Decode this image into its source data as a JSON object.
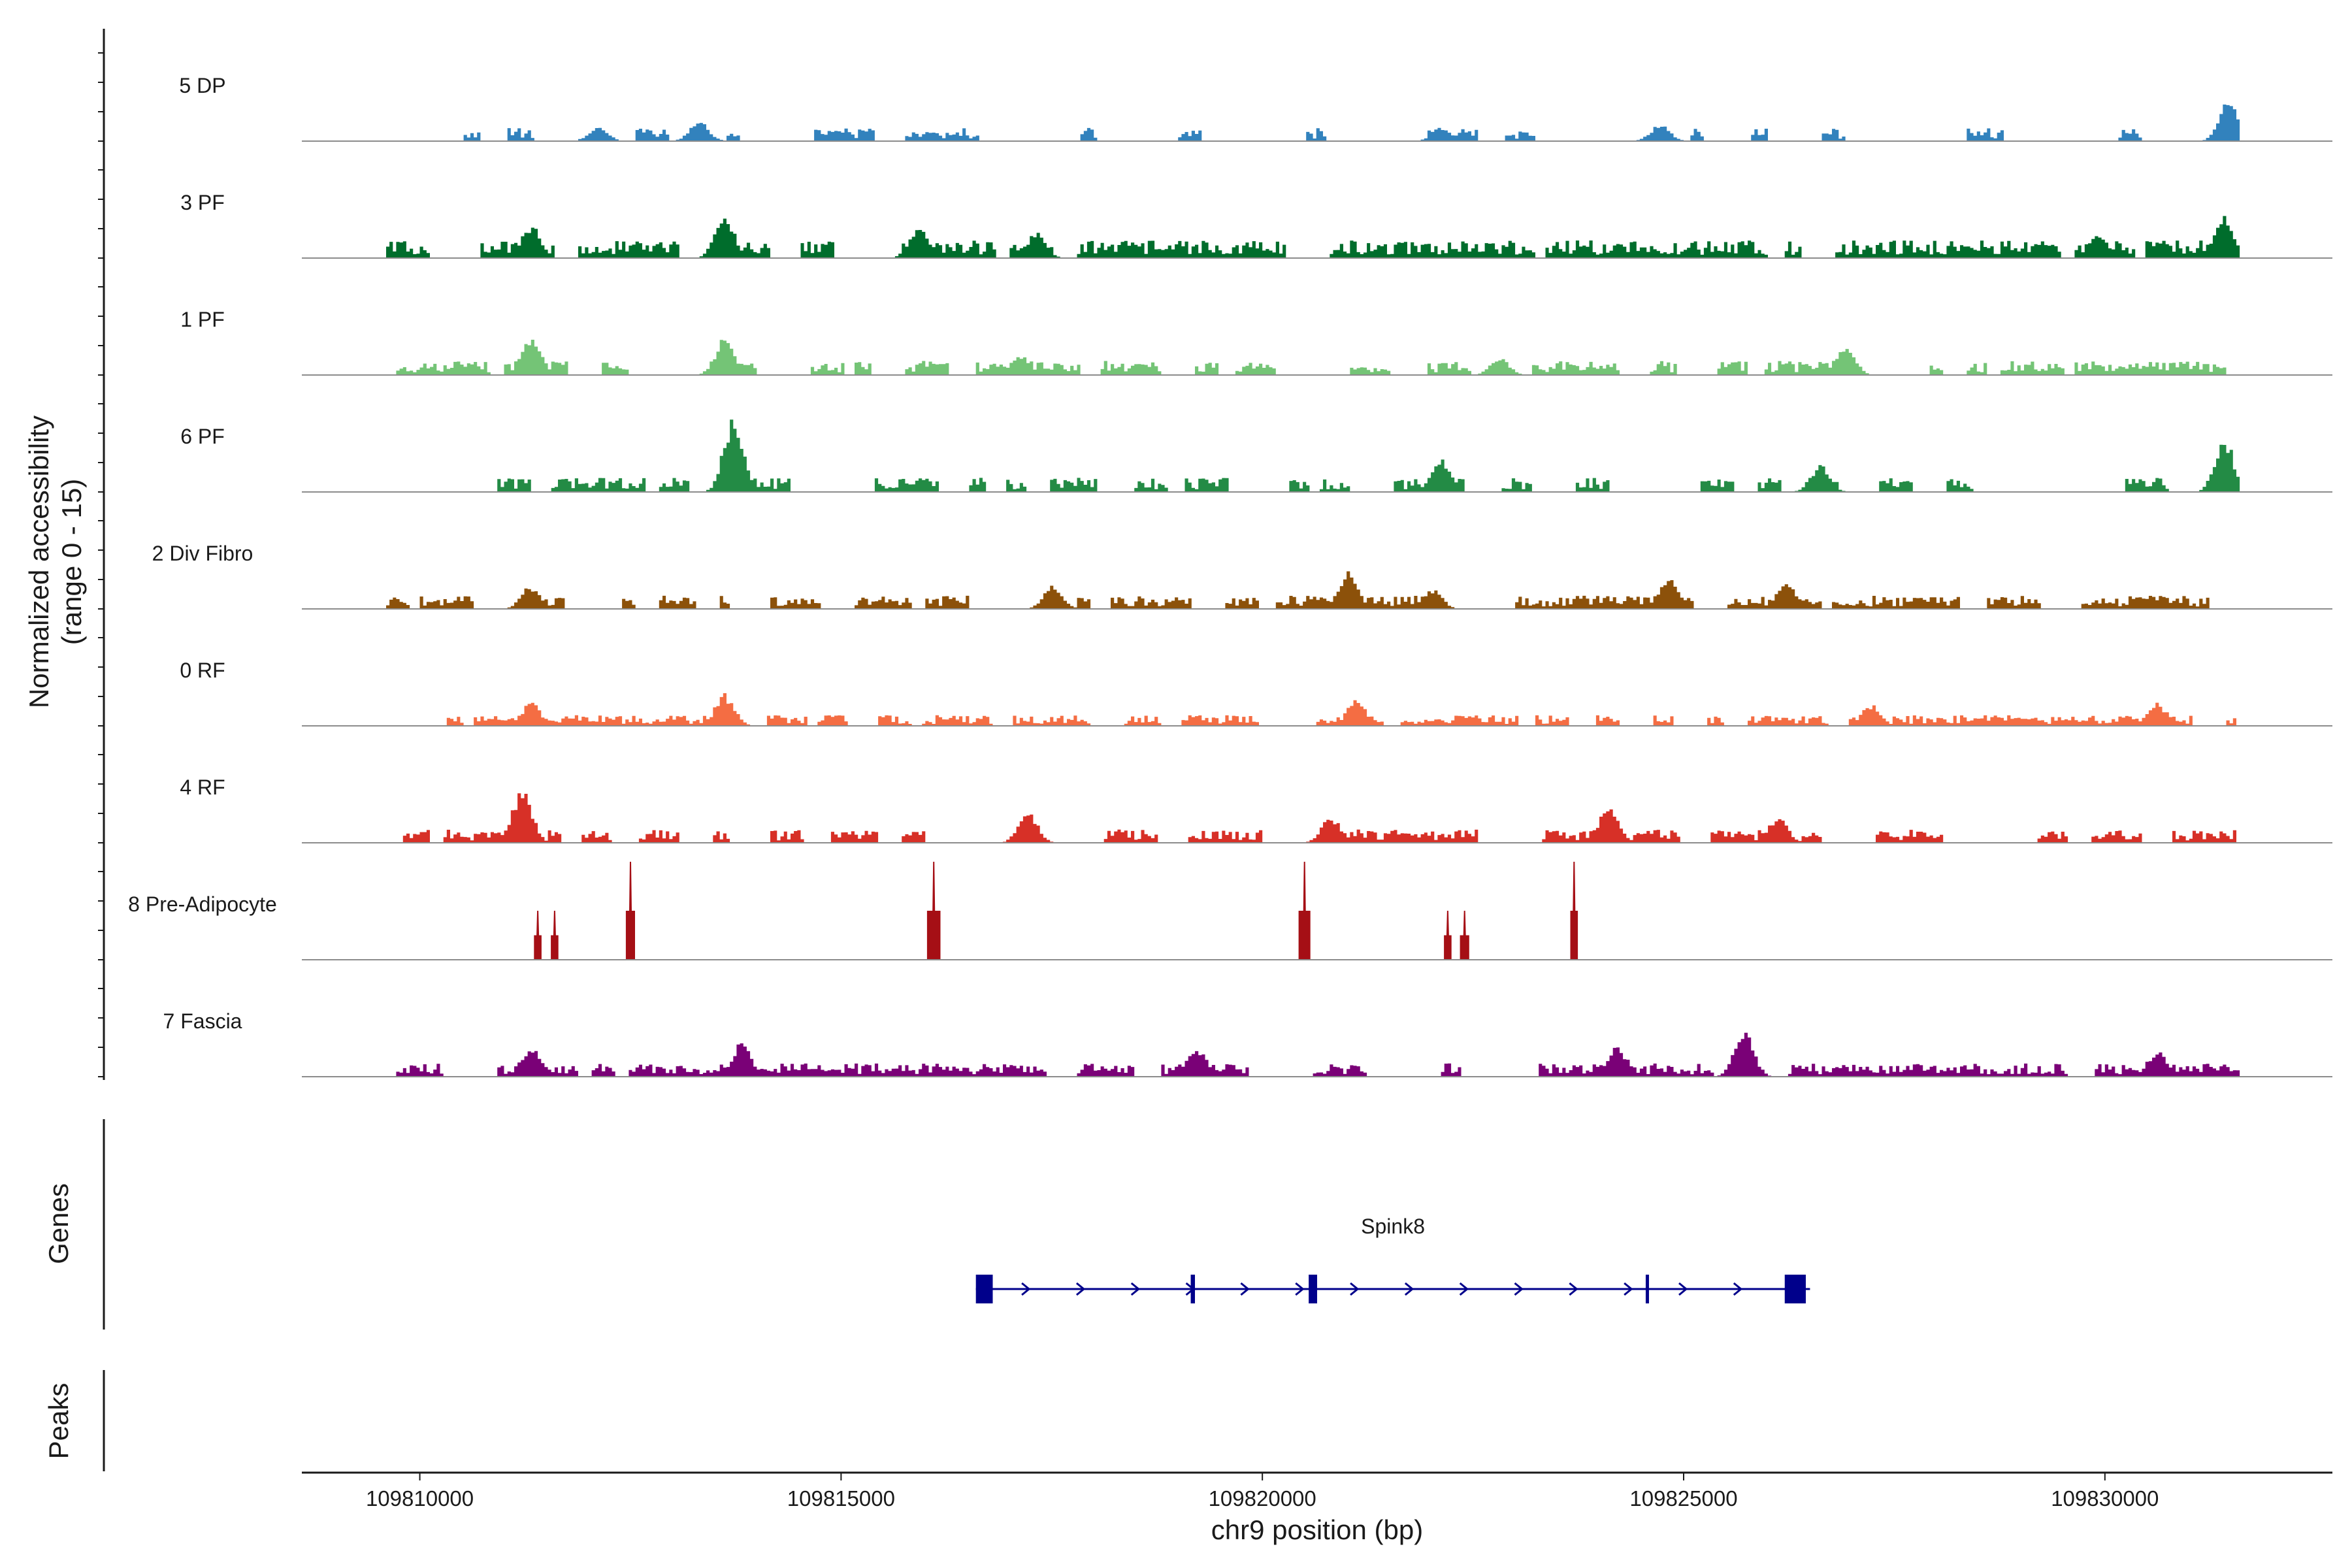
{
  "chart_data": {
    "type": "area",
    "title": "",
    "ylabel_line1": "Normalized accessibility",
    "ylabel_line2": "(range 0 - 15)",
    "ylim": [
      0,
      15
    ],
    "xlabel": "chr9 position (bp)",
    "xlim": [
      109808600,
      109832700
    ],
    "region_end": 109831600,
    "xticks": [
      109810000,
      109815000,
      109820000,
      109825000,
      109830000
    ],
    "xtick_labels": [
      "109810000",
      "109815000",
      "109820000",
      "109825000",
      "109830000"
    ],
    "tracks": [
      {
        "name": "5 DP",
        "color": "#3282BD",
        "seed": 11,
        "density": 0.3,
        "base": 1.5,
        "start": 109810500,
        "peaks": [
          [
            109813300,
            3.0
          ],
          [
            109824700,
            2.5
          ],
          [
            109831450,
            6.0
          ],
          [
            109812100,
            2.0
          ],
          [
            109822100,
            2.0
          ]
        ]
      },
      {
        "name": "3 PF",
        "color": "#006D2C",
        "seed": 23,
        "density": 0.7,
        "base": 2.0,
        "start": 109809600,
        "peaks": [
          [
            109813600,
            6.5
          ],
          [
            109811300,
            5.0
          ],
          [
            109815900,
            4.5
          ],
          [
            109831400,
            6.5
          ],
          [
            109817300,
            4.0
          ],
          [
            109829900,
            3.5
          ]
        ]
      },
      {
        "name": "1 PF",
        "color": "#74C476",
        "seed": 37,
        "density": 0.65,
        "base": 1.6,
        "start": 109809700,
        "peaks": [
          [
            109811300,
            6.0
          ],
          [
            109813600,
            5.5
          ],
          [
            109826900,
            4.8
          ],
          [
            109817100,
            3.0
          ],
          [
            109822800,
            2.5
          ]
        ]
      },
      {
        "name": "6 PF",
        "color": "#238B45",
        "seed": 41,
        "density": 0.38,
        "base": 1.6,
        "start": 109810900,
        "peaks": [
          [
            109813700,
            11.5
          ],
          [
            109831400,
            8.0
          ],
          [
            109822100,
            5.0
          ],
          [
            109826600,
            4.0
          ]
        ]
      },
      {
        "name": "2 Div Fibro",
        "color": "#8C510A",
        "seed": 53,
        "density": 0.66,
        "base": 1.5,
        "start": 109809600,
        "peaks": [
          [
            109821000,
            5.5
          ],
          [
            109824800,
            4.8
          ],
          [
            109826200,
            4.5
          ],
          [
            109811300,
            3.5
          ],
          [
            109817500,
            3.5
          ],
          [
            109822000,
            3.0
          ]
        ]
      },
      {
        "name": "0 RF",
        "color": "#F46D43",
        "seed": 67,
        "density": 0.78,
        "base": 1.2,
        "start": 109810300,
        "peaks": [
          [
            109813600,
            4.8
          ],
          [
            109811300,
            3.5
          ],
          [
            109821100,
            4.0
          ],
          [
            109830600,
            3.5
          ],
          [
            109827200,
            3.2
          ]
        ]
      },
      {
        "name": "4 RF",
        "color": "#D73027",
        "seed": 71,
        "density": 0.6,
        "base": 1.5,
        "start": 109809800,
        "peaks": [
          [
            109811200,
            8.5
          ],
          [
            109824100,
            6.0
          ],
          [
            109817200,
            4.5
          ],
          [
            109826100,
            4.0
          ],
          [
            109820800,
            4.0
          ]
        ]
      },
      {
        "name": "8 Pre-Adipocyte",
        "color": "#A50F15",
        "seed": 83,
        "density": 0.0,
        "base": 0,
        "start": 109811300,
        "bars": [
          [
            109811400,
            7.5,
            90
          ],
          [
            109811600,
            7.5,
            90
          ],
          [
            109812500,
            15,
            110
          ],
          [
            109816100,
            15,
            160
          ],
          [
            109820500,
            15,
            140
          ],
          [
            109822200,
            7.5,
            90
          ],
          [
            109822400,
            7.5,
            110
          ],
          [
            109823700,
            15,
            90
          ]
        ]
      },
      {
        "name": "7 Fascia",
        "color": "#7A0177",
        "seed": 97,
        "density": 0.62,
        "base": 1.5,
        "start": 109809700,
        "peaks": [
          [
            109825700,
            7.0
          ],
          [
            109813800,
            5.0
          ],
          [
            109811300,
            4.5
          ],
          [
            109819200,
            4.5
          ],
          [
            109830600,
            4.0
          ],
          [
            109824200,
            4.5
          ]
        ]
      }
    ],
    "genes": {
      "label": "Genes",
      "name": "Spink8",
      "color": "#00008B",
      "start": 109816600,
      "end": 109826500,
      "strand": "+",
      "exons": [
        [
          109816600,
          109816800
        ],
        [
          109819150,
          109819200
        ],
        [
          109820550,
          109820650
        ],
        [
          109824550,
          109824580
        ],
        [
          109826200,
          109826450
        ]
      ]
    },
    "peaks_label": "Peaks"
  }
}
